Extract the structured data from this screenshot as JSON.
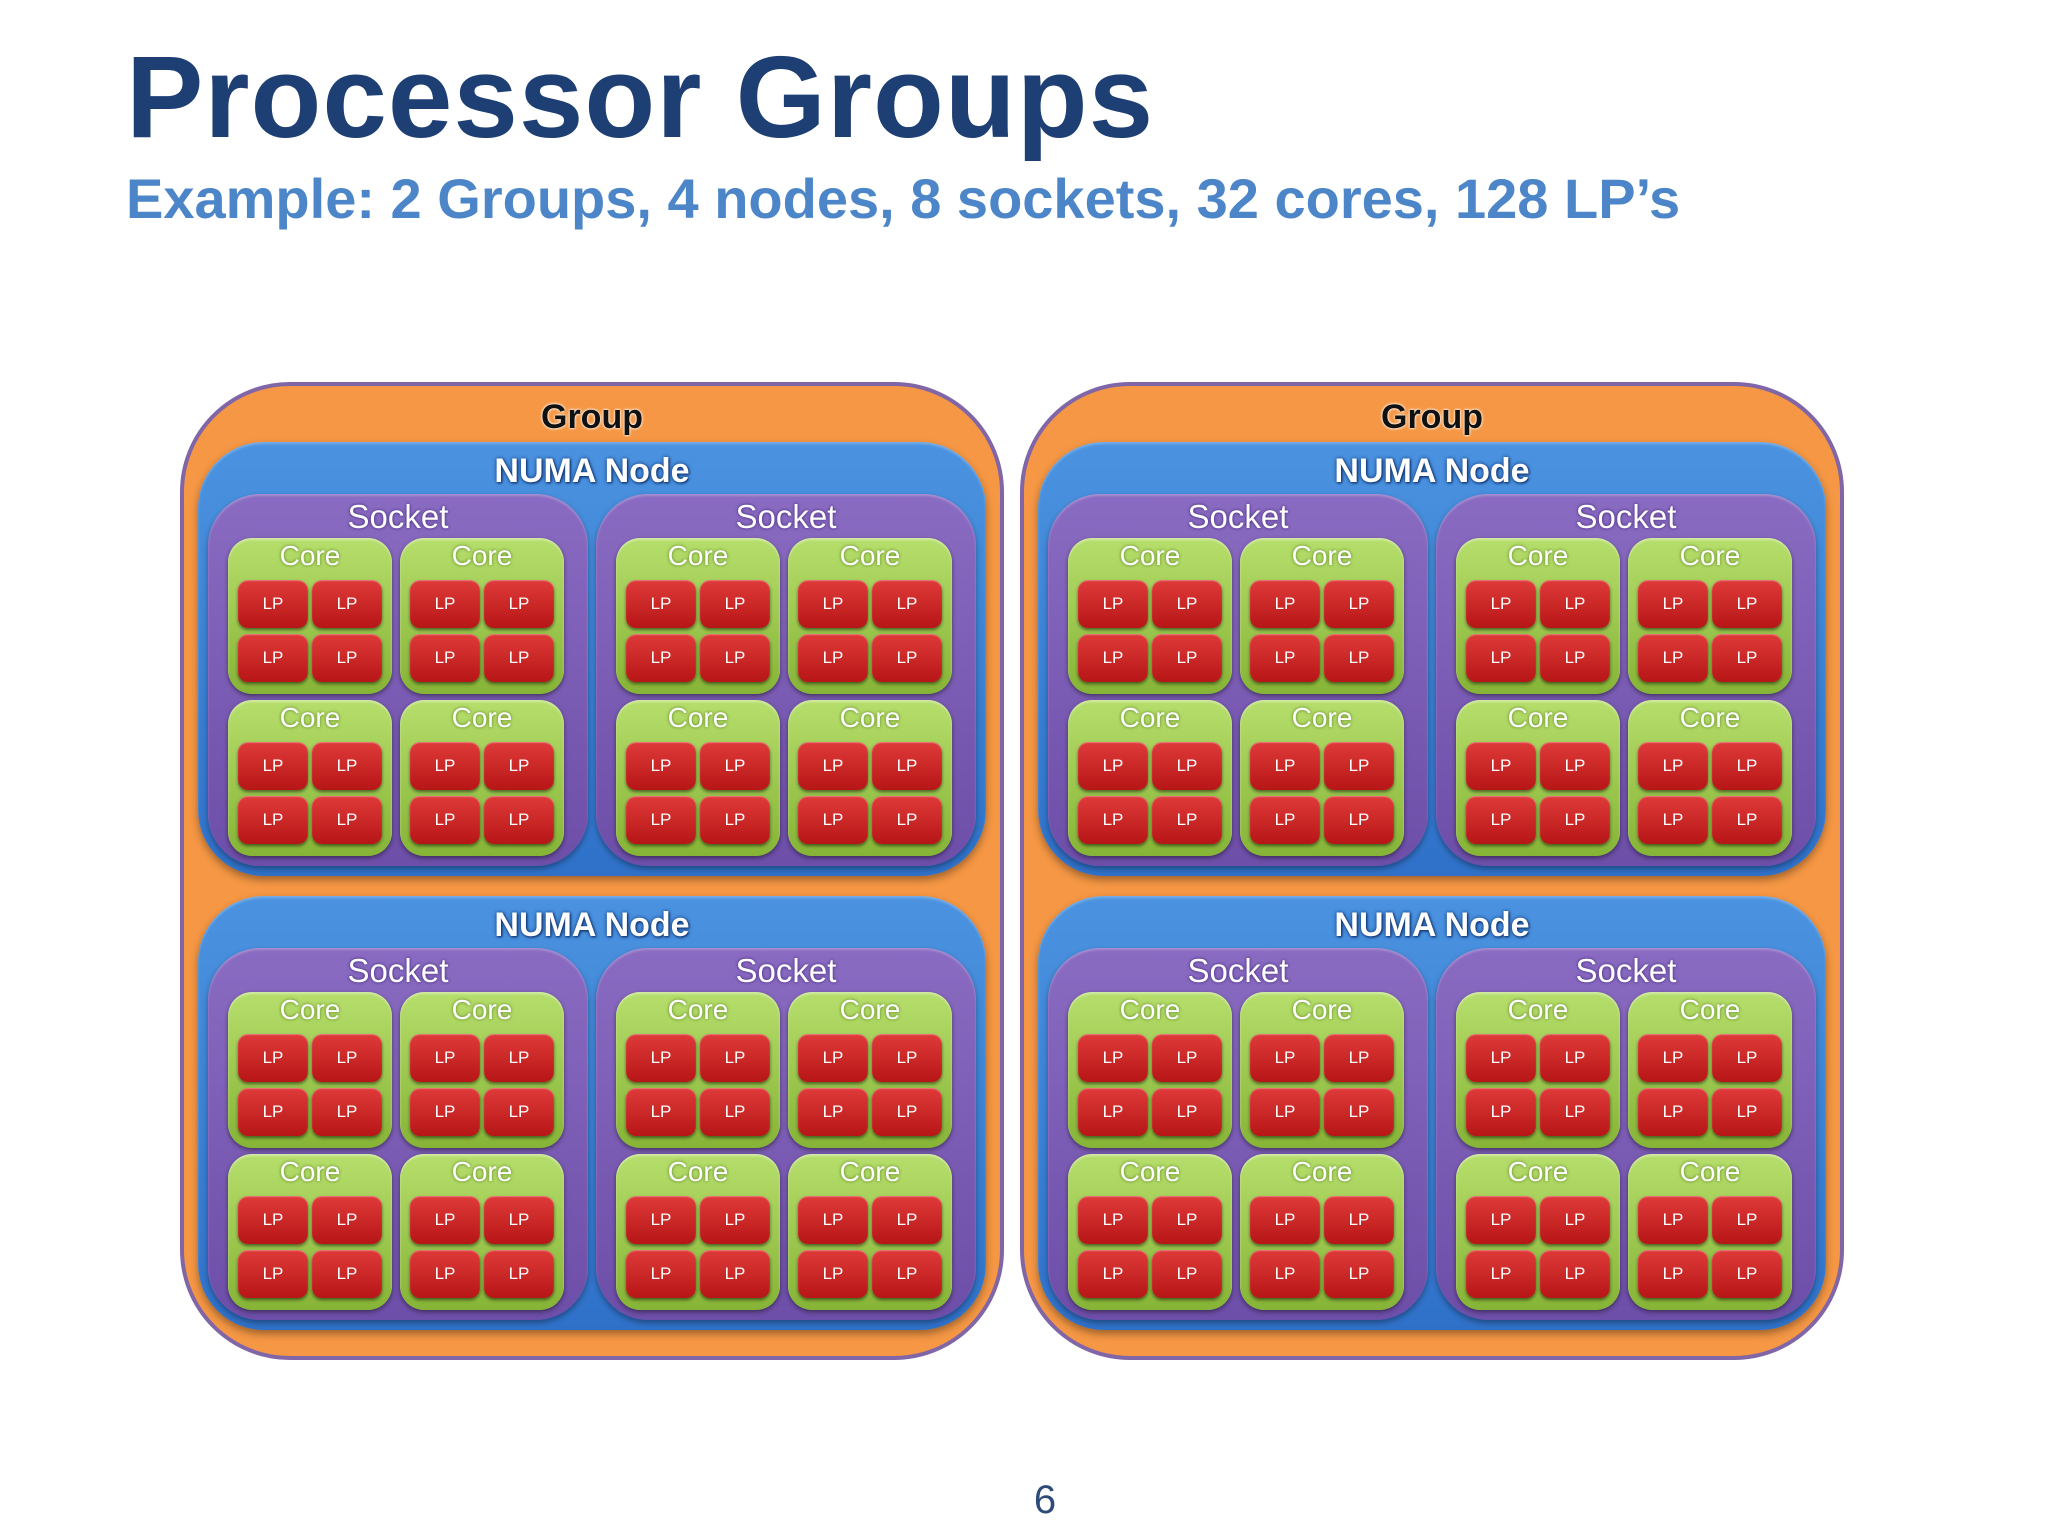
{
  "title": "Processor Groups",
  "subtitle": "Example: 2 Groups, 4 nodes, 8 sockets, 32 cores, 128 LP’s",
  "page_number": "6",
  "labels": {
    "group": "Group",
    "numa_node": "NUMA Node",
    "socket": "Socket",
    "core": "Core",
    "lp": "LP"
  },
  "structure": {
    "groups": 2,
    "numa_nodes_per_group": 2,
    "sockets_per_node": 2,
    "cores_per_socket": 4,
    "lps_per_core": 4
  },
  "colors": {
    "title": "#1e3f73",
    "subtitle": "#4c86c8",
    "group_fill": "#f59744",
    "group_border": "#8066a7",
    "numa_fill": "#3b7fd4",
    "socket_fill": "#7a5bb4",
    "core_fill": "#9cc94e",
    "lp_fill": "#c92828"
  }
}
